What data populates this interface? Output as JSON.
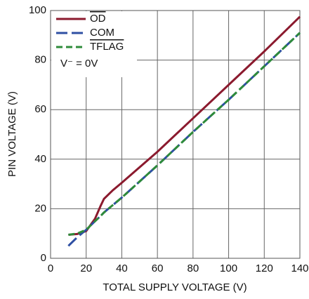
{
  "chart_data": {
    "type": "line",
    "xlabel": "TOTAL SUPPLY VOLTAGE (V)",
    "ylabel": "PIN VOLTAGE (V)",
    "annotation": "V⁻ = 0V",
    "x": [
      10,
      15,
      20,
      25,
      28,
      30,
      35,
      40,
      60,
      80,
      100,
      120,
      140
    ],
    "series": [
      {
        "name": "OD",
        "color": "#8b1a2e",
        "dash": "none",
        "overline": true,
        "values": [
          9.5,
          9.8,
          11,
          16,
          21,
          24,
          27.5,
          30.5,
          43,
          56.5,
          70,
          83.5,
          97.5
        ]
      },
      {
        "name": "COM",
        "color": "#2e4fa3",
        "dash": "16 6",
        "overline": false,
        "values": [
          5,
          8.5,
          11.5,
          15,
          17,
          18.5,
          21.5,
          24.5,
          37.5,
          51,
          64,
          77.5,
          91
        ]
      },
      {
        "name": "TFLAG",
        "color": "#2e8b3a",
        "dash": "9 5",
        "overline": true,
        "values": [
          9.5,
          10,
          11.5,
          15,
          17,
          18.5,
          21.5,
          24.5,
          37.5,
          51,
          64,
          77.5,
          91
        ]
      }
    ],
    "xlim": [
      0,
      140
    ],
    "xticks": [
      0,
      20,
      40,
      60,
      80,
      100,
      120,
      140
    ],
    "ylim": [
      0,
      100
    ],
    "yticks": [
      0,
      20,
      40,
      60,
      80,
      100
    ],
    "grid": true
  }
}
